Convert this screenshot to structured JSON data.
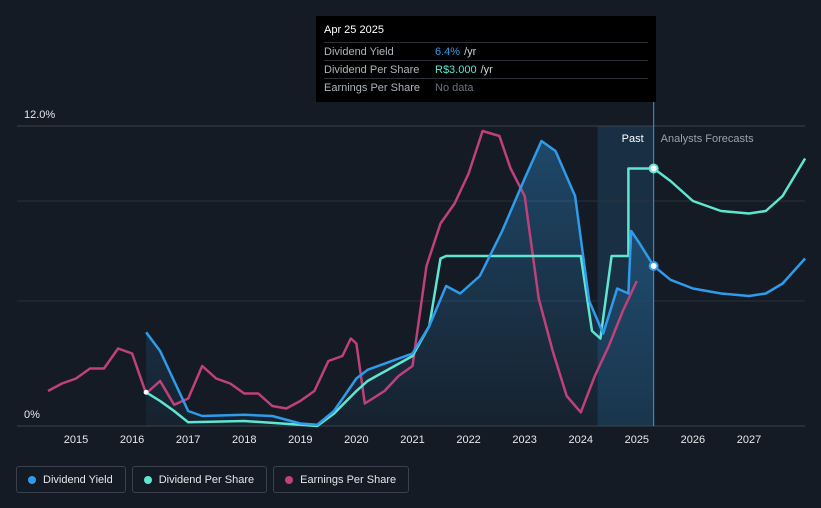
{
  "tooltip": {
    "date": "Apr 25 2025",
    "rows": [
      {
        "name": "Dividend Yield",
        "value": "6.4%",
        "unit": "/yr",
        "color": "#2f9bea"
      },
      {
        "name": "Dividend Per Share",
        "value": "R$3.000",
        "unit": "/yr",
        "color": "#5ee6d0"
      },
      {
        "name": "Earnings Per Share",
        "value": "No data",
        "unit": "",
        "color": "#6b7280"
      }
    ]
  },
  "labels": {
    "past": "Past",
    "forecast": "Analysts Forecasts"
  },
  "legend": [
    {
      "label": "Dividend Yield",
      "color": "#2f9bea"
    },
    {
      "label": "Dividend Per Share",
      "color": "#5ee6d0"
    },
    {
      "label": "Earnings Per Share",
      "color": "#c0407a"
    }
  ],
  "chart_data": {
    "type": "line",
    "x_ticks": [
      "2015",
      "2016",
      "2017",
      "2018",
      "2019",
      "2020",
      "2021",
      "2022",
      "2023",
      "2024",
      "2025",
      "2026",
      "2027"
    ],
    "y_ticks": [
      "0%",
      "12.0%"
    ],
    "ylim": [
      0,
      12
    ],
    "xlim": [
      2014.5,
      2028.0
    ],
    "past_until": 2025.3,
    "series": [
      {
        "name": "Dividend Yield",
        "color": "#2f9bea",
        "points": [
          [
            2016.25,
            3.75
          ],
          [
            2016.5,
            3.0
          ],
          [
            2016.75,
            1.8
          ],
          [
            2017.0,
            0.6
          ],
          [
            2017.25,
            0.4
          ],
          [
            2018.0,
            0.45
          ],
          [
            2018.5,
            0.4
          ],
          [
            2019.0,
            0.1
          ],
          [
            2019.3,
            0.05
          ],
          [
            2019.6,
            0.6
          ],
          [
            2020.0,
            1.9
          ],
          [
            2020.2,
            2.25
          ],
          [
            2021.0,
            2.9
          ],
          [
            2021.3,
            4.0
          ],
          [
            2021.6,
            5.6
          ],
          [
            2021.85,
            5.3
          ],
          [
            2022.2,
            6.0
          ],
          [
            2022.6,
            7.8
          ],
          [
            2023.0,
            9.9
          ],
          [
            2023.3,
            11.4
          ],
          [
            2023.55,
            11.0
          ],
          [
            2023.9,
            9.2
          ],
          [
            2024.15,
            5.0
          ],
          [
            2024.4,
            3.7
          ],
          [
            2024.65,
            5.5
          ],
          [
            2024.85,
            5.3
          ],
          [
            2024.9,
            7.8
          ],
          [
            2025.05,
            7.3
          ],
          [
            2025.3,
            6.4
          ],
          [
            2025.6,
            5.85
          ],
          [
            2026.0,
            5.5
          ],
          [
            2026.5,
            5.3
          ],
          [
            2027.0,
            5.2
          ],
          [
            2027.3,
            5.3
          ],
          [
            2027.6,
            5.7
          ],
          [
            2028.0,
            6.7
          ]
        ]
      },
      {
        "name": "Dividend Per Share",
        "color": "#5ee6d0",
        "points": [
          [
            2016.25,
            1.35
          ],
          [
            2016.5,
            1.0
          ],
          [
            2016.75,
            0.6
          ],
          [
            2017.0,
            0.15
          ],
          [
            2018.0,
            0.2
          ],
          [
            2019.0,
            0.05
          ],
          [
            2019.3,
            0.0
          ],
          [
            2019.6,
            0.5
          ],
          [
            2020.0,
            1.4
          ],
          [
            2020.2,
            1.8
          ],
          [
            2021.0,
            2.8
          ],
          [
            2021.3,
            4.0
          ],
          [
            2021.5,
            6.7
          ],
          [
            2021.6,
            6.8
          ],
          [
            2024.0,
            6.8
          ],
          [
            2024.2,
            3.8
          ],
          [
            2024.35,
            3.5
          ],
          [
            2024.55,
            6.8
          ],
          [
            2024.85,
            6.8
          ],
          [
            2024.85,
            10.3
          ],
          [
            2025.3,
            10.3
          ],
          [
            2025.6,
            9.8
          ],
          [
            2026.0,
            9.0
          ],
          [
            2026.5,
            8.6
          ],
          [
            2027.0,
            8.5
          ],
          [
            2027.3,
            8.6
          ],
          [
            2027.6,
            9.2
          ],
          [
            2028.0,
            10.7
          ]
        ]
      },
      {
        "name": "Earnings Per Share",
        "color": "#c0407a",
        "points": [
          [
            2014.5,
            1.4
          ],
          [
            2014.75,
            1.7
          ],
          [
            2015.0,
            1.9
          ],
          [
            2015.25,
            2.3
          ],
          [
            2015.5,
            2.3
          ],
          [
            2015.75,
            3.1
          ],
          [
            2016.0,
            2.9
          ],
          [
            2016.25,
            1.3
          ],
          [
            2016.5,
            1.8
          ],
          [
            2016.75,
            0.85
          ],
          [
            2017.0,
            1.1
          ],
          [
            2017.25,
            2.4
          ],
          [
            2017.5,
            1.9
          ],
          [
            2017.75,
            1.7
          ],
          [
            2018.0,
            1.3
          ],
          [
            2018.25,
            1.3
          ],
          [
            2018.5,
            0.8
          ],
          [
            2018.75,
            0.7
          ],
          [
            2019.0,
            1.0
          ],
          [
            2019.25,
            1.4
          ],
          [
            2019.5,
            2.6
          ],
          [
            2019.75,
            2.8
          ],
          [
            2019.9,
            3.5
          ],
          [
            2020.0,
            3.3
          ],
          [
            2020.15,
            0.9
          ],
          [
            2020.5,
            1.4
          ],
          [
            2020.75,
            2.0
          ],
          [
            2021.0,
            2.4
          ],
          [
            2021.25,
            6.4
          ],
          [
            2021.5,
            8.1
          ],
          [
            2021.75,
            8.9
          ],
          [
            2022.0,
            10.1
          ],
          [
            2022.25,
            11.8
          ],
          [
            2022.55,
            11.6
          ],
          [
            2022.75,
            10.3
          ],
          [
            2023.0,
            9.2
          ],
          [
            2023.25,
            5.1
          ],
          [
            2023.5,
            3.0
          ],
          [
            2023.75,
            1.2
          ],
          [
            2024.0,
            0.55
          ],
          [
            2024.25,
            2.0
          ],
          [
            2024.5,
            3.2
          ],
          [
            2024.75,
            4.6
          ],
          [
            2025.0,
            5.8
          ]
        ]
      }
    ]
  }
}
